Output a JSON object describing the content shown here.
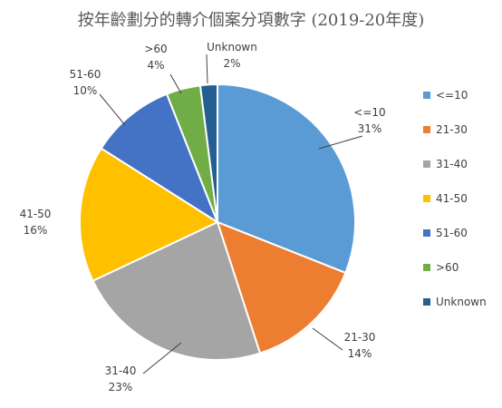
{
  "chart_data": {
    "type": "pie",
    "title": "按年齡劃分的轉介個案分項數字 (2019-20年度)",
    "categories": [
      "<=10",
      "21-30",
      "31-40",
      "41-50",
      "51-60",
      ">60",
      "Unknown"
    ],
    "values": [
      31,
      14,
      23,
      16,
      10,
      4,
      2
    ],
    "value_labels": [
      "31%",
      "14%",
      "23%",
      "16%",
      "10%",
      "4%",
      "2%"
    ],
    "colors": [
      "#5B9BD5",
      "#ED7D31",
      "#A5A5A5",
      "#FFC000",
      "#4472C4",
      "#70AD47",
      "#255E91"
    ],
    "legend": {
      "placement": "right",
      "entries": [
        "<=10",
        "21-30",
        "31-40",
        "41-50",
        "51-60",
        ">60",
        "Unknown"
      ]
    }
  }
}
